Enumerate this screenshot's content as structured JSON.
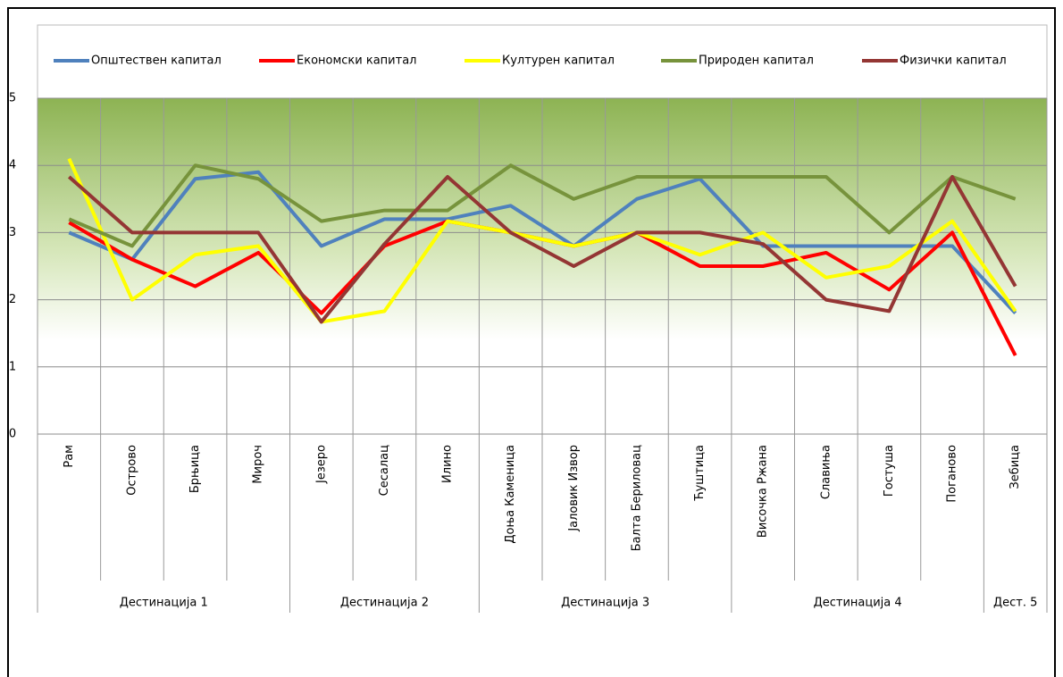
{
  "chart_data": {
    "type": "line",
    "categories": [
      "Рам",
      "Острово",
      "Брњица",
      "Мироч",
      "Језеро",
      "Сесалац",
      "Илино",
      "Доња Каменица",
      "Јаловик Извор",
      "Балта Бериловац",
      "Ћуштица",
      "Височка Ржана",
      "Славиња",
      "Гостуша",
      "Поганово",
      "Зебица"
    ],
    "groups": [
      {
        "name": "Дестинација 1",
        "span": 4
      },
      {
        "name": "Дестинација 2",
        "span": 3
      },
      {
        "name": "Дестинација 3",
        "span": 4
      },
      {
        "name": "Дестинација 4",
        "span": 4
      },
      {
        "name": "Дест. 5",
        "span": 1
      }
    ],
    "series": [
      {
        "name": "Општествен капитал",
        "color": "#4f81bd",
        "values": [
          3.0,
          2.6,
          3.8,
          3.9,
          2.8,
          3.2,
          3.2,
          3.4,
          2.8,
          3.5,
          3.8,
          2.8,
          2.8,
          2.8,
          2.8,
          1.8
        ]
      },
      {
        "name": "Економски капитал",
        "color": "#ff0000",
        "values": [
          3.15,
          2.6,
          2.2,
          2.7,
          1.8,
          2.8,
          3.17,
          3.0,
          2.8,
          3.0,
          2.5,
          2.5,
          2.7,
          2.15,
          3.0,
          1.17
        ]
      },
      {
        "name": "Културен капитал",
        "color": "#ffff00",
        "values": [
          4.1,
          2.0,
          2.67,
          2.8,
          1.67,
          1.83,
          3.17,
          3.0,
          2.8,
          3.0,
          2.67,
          3.0,
          2.33,
          2.5,
          3.17,
          1.83
        ]
      },
      {
        "name": "Природен капитал",
        "color": "#77933c",
        "values": [
          3.2,
          2.8,
          4.0,
          3.8,
          3.17,
          3.33,
          3.33,
          4.0,
          3.5,
          3.83,
          3.83,
          3.83,
          3.83,
          3.0,
          3.83,
          3.5
        ]
      },
      {
        "name": "Физички капитал",
        "color": "#943634",
        "values": [
          3.83,
          3.0,
          3.0,
          3.0,
          1.67,
          2.83,
          3.83,
          3.0,
          2.5,
          3.0,
          3.0,
          2.83,
          2.0,
          1.83,
          3.83,
          2.2
        ]
      }
    ],
    "ylim": [
      0,
      5
    ],
    "yticks": [
      0,
      1,
      2,
      3,
      4,
      5
    ],
    "grid": true,
    "legend": "top"
  }
}
